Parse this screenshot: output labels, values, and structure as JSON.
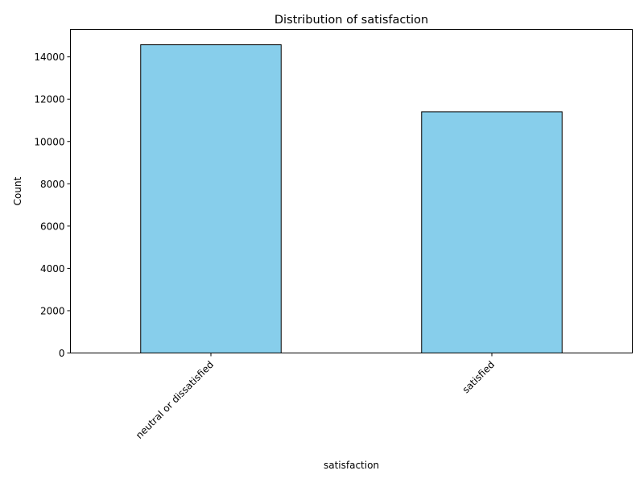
{
  "chart_data": {
    "type": "bar",
    "title": "Distribution of satisfaction",
    "xlabel": "satisfaction",
    "ylabel": "Count",
    "categories": [
      "neutral or dissatisfied",
      "satisfied"
    ],
    "values": [
      14573,
      11403
    ],
    "ylim": [
      0,
      15300
    ],
    "yticks": [
      0,
      2000,
      4000,
      6000,
      8000,
      10000,
      12000,
      14000
    ],
    "grid": false,
    "bar_color": "#87ceeb",
    "edge_color": "#000000"
  }
}
